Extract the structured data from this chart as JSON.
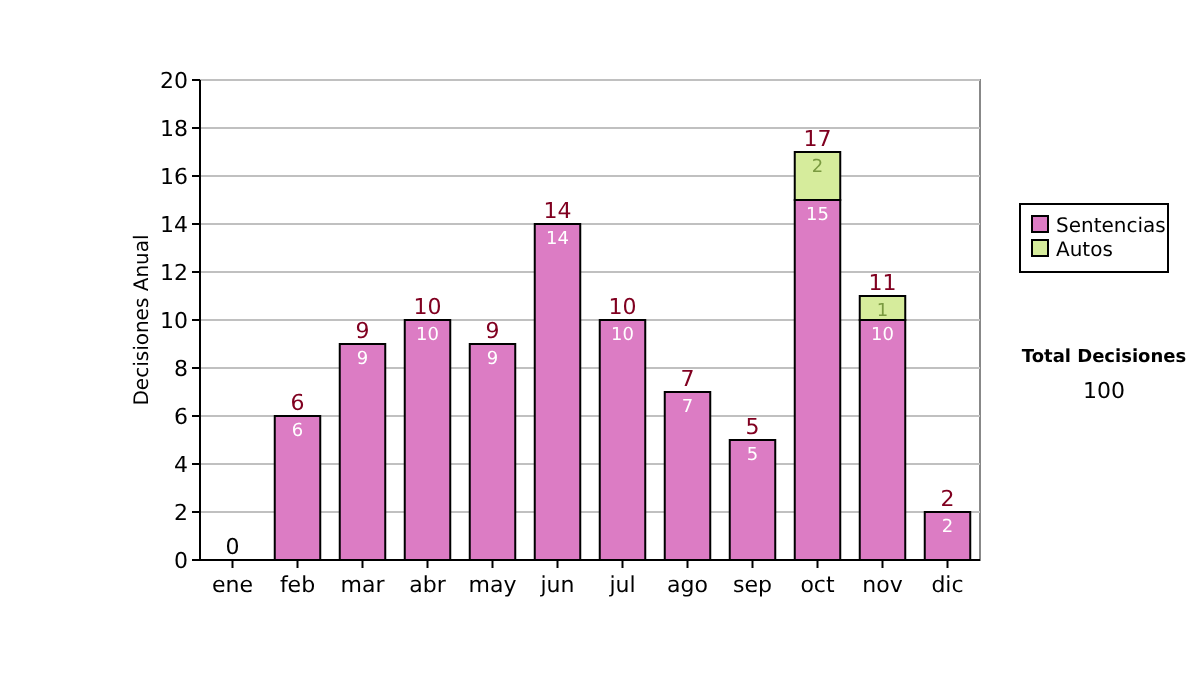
{
  "chart_data": {
    "type": "bar",
    "stacked": true,
    "ylabel": "Decisiones Anual",
    "categories": [
      "ene",
      "feb",
      "mar",
      "abr",
      "may",
      "jun",
      "jul",
      "ago",
      "sep",
      "oct",
      "nov",
      "dic"
    ],
    "series": [
      {
        "name": "Sentencias",
        "color": "#dc7cc4",
        "values": [
          0,
          6,
          9,
          10,
          9,
          14,
          10,
          7,
          5,
          15,
          10,
          2
        ],
        "value_labels": [
          null,
          "6",
          "9",
          "10",
          "9",
          "14",
          "10",
          "7",
          "5",
          "15",
          "10",
          "2"
        ]
      },
      {
        "name": "Autos",
        "color": "#d6ec9c",
        "values": [
          null,
          null,
          null,
          null,
          null,
          null,
          null,
          null,
          null,
          2,
          1,
          null
        ],
        "value_labels": [
          null,
          null,
          null,
          null,
          null,
          null,
          null,
          null,
          null,
          "2",
          "1",
          null
        ]
      }
    ],
    "totals": [
      "0",
      "6",
      "9",
      "10",
      "9",
      "14",
      "10",
      "7",
      "5",
      "17",
      "11",
      "2"
    ],
    "ylim": [
      0,
      20
    ],
    "yticks": [
      0,
      2,
      4,
      6,
      8,
      10,
      12,
      14,
      16,
      18,
      20
    ],
    "grid": "y",
    "legend": "right",
    "annotations": [
      "Total Decisiones",
      "100"
    ]
  }
}
